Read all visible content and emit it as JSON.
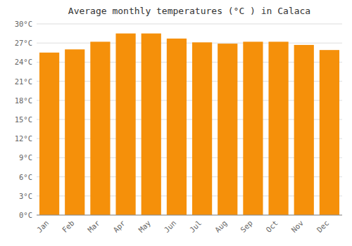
{
  "chart_data": {
    "type": "bar",
    "title": "Average monthly temperatures (°C ) in Calaca",
    "categories": [
      "Jan",
      "Feb",
      "Mar",
      "Apr",
      "May",
      "Jun",
      "Jul",
      "Aug",
      "Sep",
      "Oct",
      "Nov",
      "Dec"
    ],
    "values": [
      25.5,
      26.0,
      27.2,
      28.5,
      28.5,
      27.7,
      27.1,
      26.9,
      27.2,
      27.2,
      26.7,
      25.9
    ],
    "color": "#F5900A",
    "ylim": [
      0,
      30
    ],
    "yticks": [
      {
        "value": 0,
        "label": "0°C"
      },
      {
        "value": 3,
        "label": "3°C"
      },
      {
        "value": 6,
        "label": "6°C"
      },
      {
        "value": 9,
        "label": "9°C"
      },
      {
        "value": 12,
        "label": "12°C"
      },
      {
        "value": 15,
        "label": "15°C"
      },
      {
        "value": 18,
        "label": "18°C"
      },
      {
        "value": 21,
        "label": "21°C"
      },
      {
        "value": 24,
        "label": "24°C"
      },
      {
        "value": 27,
        "label": "27°C"
      },
      {
        "value": 30,
        "label": "30°C"
      }
    ],
    "grid": true
  }
}
